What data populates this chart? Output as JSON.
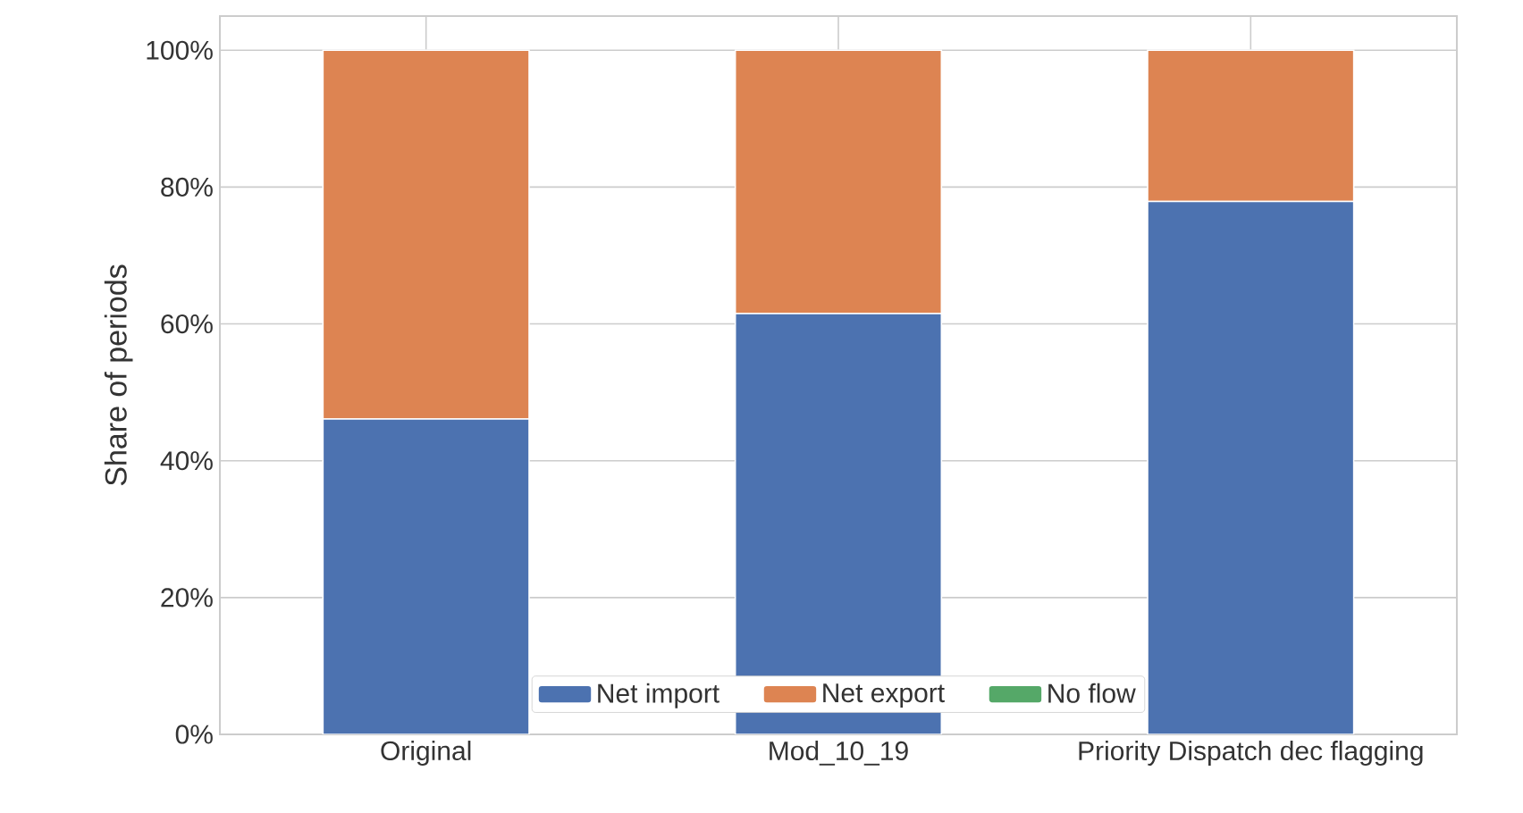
{
  "chart_data": {
    "type": "bar",
    "stacked": true,
    "ylabel": "Share of periods",
    "categories": [
      "Original",
      "Mod_10_19",
      "Priority Dispatch dec flagging"
    ],
    "series": [
      {
        "name": "Net import",
        "color": "#4c72b0",
        "values": [
          46.1,
          61.5,
          77.9
        ]
      },
      {
        "name": "Net export",
        "color": "#dd8452",
        "values": [
          53.9,
          38.5,
          22.1
        ]
      },
      {
        "name": "No flow",
        "color": "#55a868",
        "values": [
          0,
          0,
          0
        ]
      }
    ],
    "ylim": [
      0,
      105
    ],
    "yticks": [
      {
        "value": 0,
        "label": "0%"
      },
      {
        "value": 20,
        "label": "20%"
      },
      {
        "value": 40,
        "label": "40%"
      },
      {
        "value": 60,
        "label": "60%"
      },
      {
        "value": 80,
        "label": "80%"
      },
      {
        "value": 100,
        "label": "100%"
      }
    ],
    "grid": true,
    "legend": "bottom"
  }
}
